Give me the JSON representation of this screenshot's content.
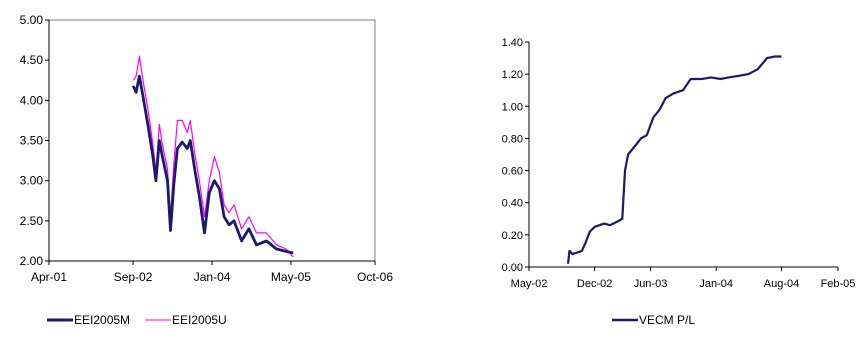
{
  "chart_data": [
    {
      "type": "line",
      "title": "",
      "xlabel": "",
      "ylabel": "",
      "ylim": [
        2.0,
        5.0
      ],
      "y_ticks": [
        "2.00",
        "2.50",
        "3.00",
        "3.50",
        "4.00",
        "4.50",
        "5.00"
      ],
      "x_ticks": [
        "Apr-01",
        "Sep-02",
        "Jan-04",
        "May-05",
        "Oct-06"
      ],
      "legend_position": "bottom",
      "grid": false,
      "series": [
        {
          "name": "EEI2005M",
          "color": "#1a1a6e",
          "points": [
            [
              "2002-09-01",
              4.18
            ],
            [
              "2002-09-20",
              4.1
            ],
            [
              "2002-10-10",
              4.3
            ],
            [
              "2002-11-01",
              4.05
            ],
            [
              "2002-12-01",
              3.7
            ],
            [
              "2003-01-01",
              3.3
            ],
            [
              "2003-01-20",
              3.0
            ],
            [
              "2003-02-10",
              3.5
            ],
            [
              "2003-03-01",
              3.3
            ],
            [
              "2003-04-01",
              3.0
            ],
            [
              "2003-04-20",
              2.38
            ],
            [
              "2003-05-10",
              2.95
            ],
            [
              "2003-06-01",
              3.4
            ],
            [
              "2003-07-01",
              3.48
            ],
            [
              "2003-08-01",
              3.4
            ],
            [
              "2003-08-20",
              3.5
            ],
            [
              "2003-09-15",
              3.15
            ],
            [
              "2003-10-15",
              2.8
            ],
            [
              "2003-11-15",
              2.35
            ],
            [
              "2003-12-15",
              2.85
            ],
            [
              "2004-01-15",
              3.0
            ],
            [
              "2004-02-15",
              2.9
            ],
            [
              "2004-03-15",
              2.55
            ],
            [
              "2004-04-15",
              2.45
            ],
            [
              "2004-05-15",
              2.5
            ],
            [
              "2004-07-01",
              2.25
            ],
            [
              "2004-08-15",
              2.4
            ],
            [
              "2004-10-01",
              2.2
            ],
            [
              "2004-12-01",
              2.25
            ],
            [
              "2005-02-01",
              2.15
            ],
            [
              "2005-04-01",
              2.12
            ],
            [
              "2005-05-15",
              2.1
            ]
          ]
        },
        {
          "name": "EEI2005U",
          "color": "#ff00ff",
          "points": [
            [
              "2002-09-01",
              4.25
            ],
            [
              "2002-09-20",
              4.3
            ],
            [
              "2002-10-10",
              4.55
            ],
            [
              "2002-11-01",
              4.25
            ],
            [
              "2002-12-01",
              3.9
            ],
            [
              "2003-01-01",
              3.45
            ],
            [
              "2003-01-20",
              3.1
            ],
            [
              "2003-02-10",
              3.7
            ],
            [
              "2003-03-01",
              3.45
            ],
            [
              "2003-04-01",
              3.15
            ],
            [
              "2003-04-20",
              2.55
            ],
            [
              "2003-05-10",
              3.2
            ],
            [
              "2003-06-01",
              3.75
            ],
            [
              "2003-07-01",
              3.75
            ],
            [
              "2003-08-01",
              3.6
            ],
            [
              "2003-08-20",
              3.75
            ],
            [
              "2003-09-15",
              3.35
            ],
            [
              "2003-10-15",
              3.0
            ],
            [
              "2003-11-15",
              2.55
            ],
            [
              "2003-12-15",
              3.0
            ],
            [
              "2004-01-15",
              3.3
            ],
            [
              "2004-02-15",
              3.1
            ],
            [
              "2004-03-15",
              2.7
            ],
            [
              "2004-04-15",
              2.6
            ],
            [
              "2004-05-15",
              2.7
            ],
            [
              "2004-07-01",
              2.4
            ],
            [
              "2004-08-15",
              2.55
            ],
            [
              "2004-10-01",
              2.35
            ],
            [
              "2004-12-01",
              2.35
            ],
            [
              "2005-02-01",
              2.2
            ],
            [
              "2005-04-01",
              2.15
            ],
            [
              "2005-05-15",
              2.05
            ]
          ]
        }
      ]
    },
    {
      "type": "line",
      "title": "",
      "xlabel": "",
      "ylabel": "",
      "ylim": [
        0.0,
        1.4
      ],
      "y_ticks": [
        "0.00",
        "0.20",
        "0.40",
        "0.60",
        "0.80",
        "1.00",
        "1.20",
        "1.40"
      ],
      "x_ticks": [
        "May-02",
        "Dec-02",
        "Jun-03",
        "Jan-04",
        "Aug-04",
        "Feb-05"
      ],
      "legend_position": "bottom",
      "grid": false,
      "series": [
        {
          "name": "VECM P/L",
          "color": "#1a1a6e",
          "points": [
            [
              "2002-09-05",
              0.02
            ],
            [
              "2002-09-10",
              0.1
            ],
            [
              "2002-09-20",
              0.08
            ],
            [
              "2002-10-05",
              0.09
            ],
            [
              "2002-10-20",
              0.1
            ],
            [
              "2002-11-01",
              0.15
            ],
            [
              "2002-11-15",
              0.22
            ],
            [
              "2002-12-01",
              0.25
            ],
            [
              "2003-01-01",
              0.27
            ],
            [
              "2003-01-20",
              0.26
            ],
            [
              "2003-02-10",
              0.28
            ],
            [
              "2003-03-01",
              0.3
            ],
            [
              "2003-03-10",
              0.6
            ],
            [
              "2003-03-20",
              0.7
            ],
            [
              "2003-04-10",
              0.75
            ],
            [
              "2003-05-01",
              0.8
            ],
            [
              "2003-05-20",
              0.82
            ],
            [
              "2003-06-10",
              0.93
            ],
            [
              "2003-07-01",
              0.98
            ],
            [
              "2003-07-20",
              1.05
            ],
            [
              "2003-08-15",
              1.08
            ],
            [
              "2003-09-15",
              1.1
            ],
            [
              "2003-10-10",
              1.17
            ],
            [
              "2003-11-15",
              1.17
            ],
            [
              "2003-12-15",
              1.18
            ],
            [
              "2004-01-15",
              1.17
            ],
            [
              "2004-02-10",
              1.18
            ],
            [
              "2004-03-15",
              1.19
            ],
            [
              "2004-04-15",
              1.2
            ],
            [
              "2004-05-15",
              1.23
            ],
            [
              "2004-06-15",
              1.3
            ],
            [
              "2004-07-10",
              1.31
            ],
            [
              "2004-08-01",
              1.31
            ]
          ]
        }
      ]
    }
  ]
}
